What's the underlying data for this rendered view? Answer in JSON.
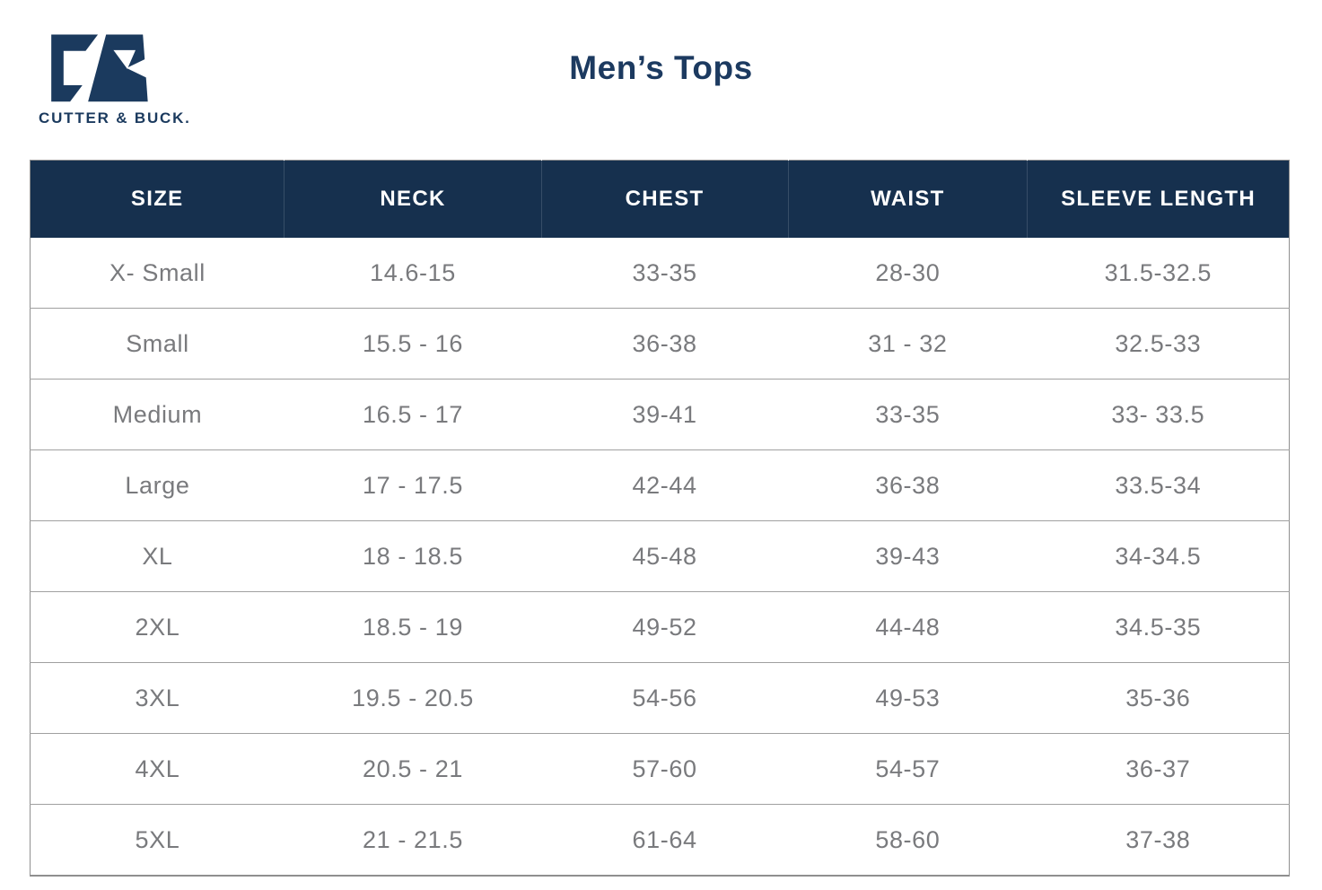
{
  "brand": {
    "monogram": "CB",
    "wordmark": "CUTTER & BUCK."
  },
  "page_title": "Men’s Tops",
  "colors": {
    "brand_navy": "#1b3a5e",
    "header_bg": "#16304e",
    "header_text": "#ffffff",
    "body_text": "#797a7d",
    "border_gray": "#8f8f8f"
  },
  "table": {
    "headers": [
      "SIZE",
      "NECK",
      "CHEST",
      "WAIST",
      "SLEEVE LENGTH"
    ],
    "rows": [
      [
        "X- Small",
        "14.6-15",
        "33-35",
        "28-30",
        "31.5-32.5"
      ],
      [
        "Small",
        "15.5 - 16",
        "36-38",
        "31 - 32",
        "32.5-33"
      ],
      [
        "Medium",
        "16.5 - 17",
        "39-41",
        "33-35",
        "33- 33.5"
      ],
      [
        "Large",
        "17 - 17.5",
        "42-44",
        "36-38",
        "33.5-34"
      ],
      [
        "XL",
        "18 - 18.5",
        "45-48",
        "39-43",
        "34-34.5"
      ],
      [
        "2XL",
        "18.5 - 19",
        "49-52",
        "44-48",
        "34.5-35"
      ],
      [
        "3XL",
        "19.5 - 20.5",
        "54-56",
        "49-53",
        "35-36"
      ],
      [
        "4XL",
        "20.5 - 21",
        "57-60",
        "54-57",
        "36-37"
      ],
      [
        "5XL",
        "21 - 21.5",
        "61-64",
        "58-60",
        "37-38"
      ]
    ]
  }
}
